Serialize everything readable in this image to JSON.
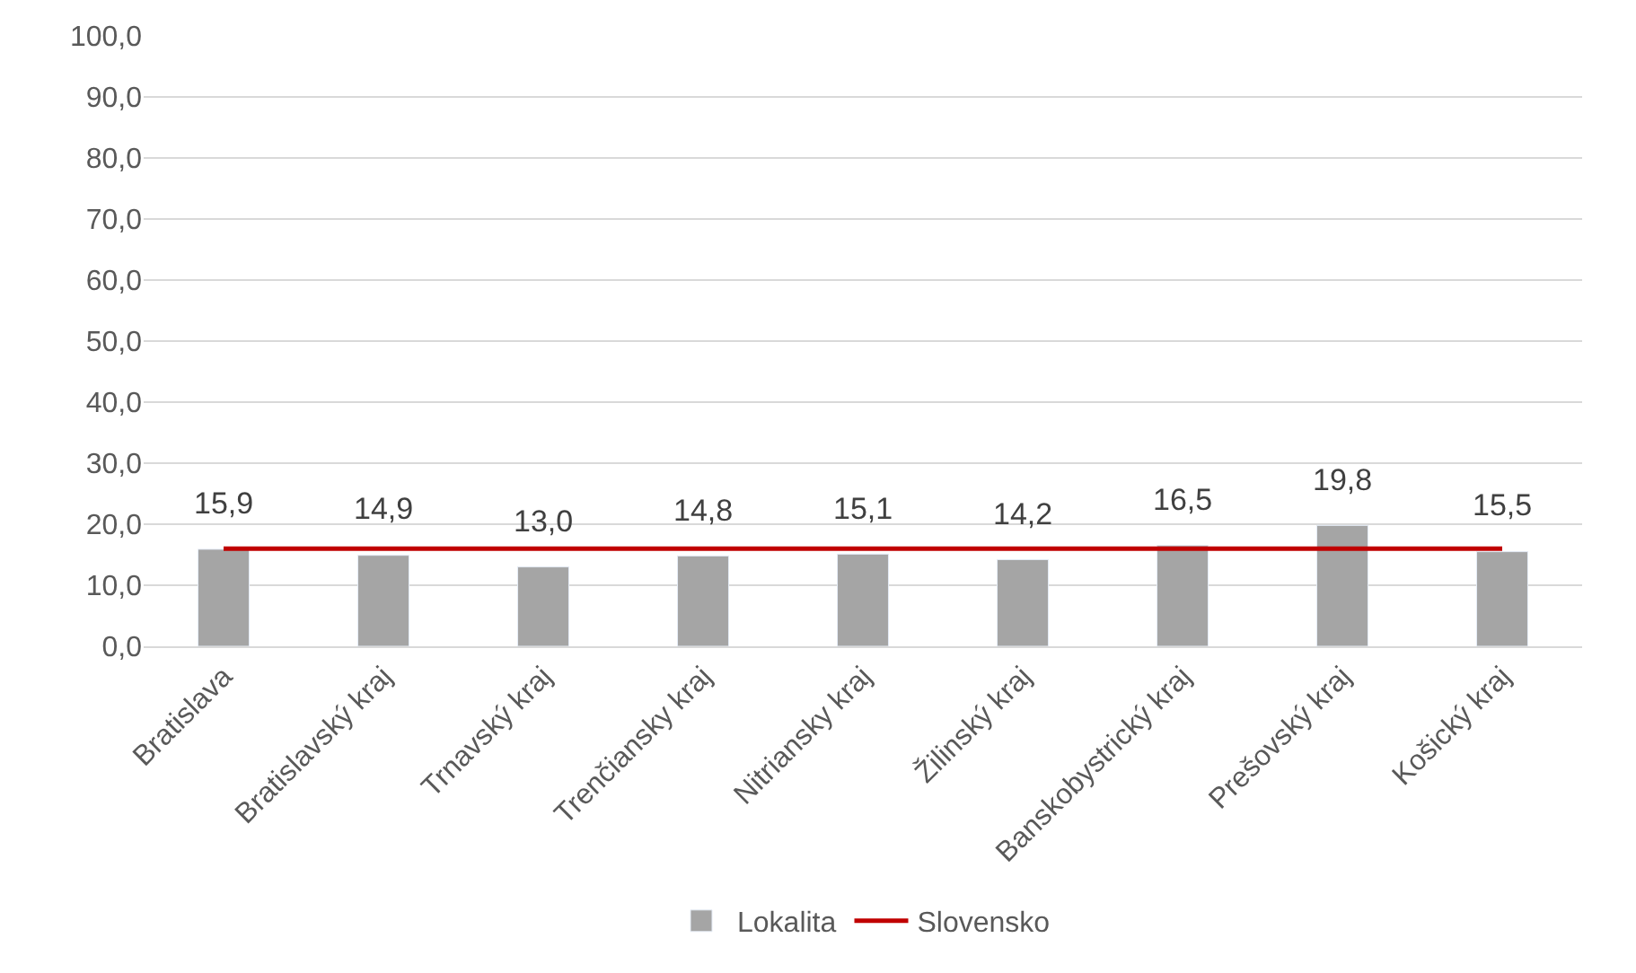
{
  "chart_data": {
    "type": "bar",
    "categories": [
      "Bratislava",
      "Bratislavský kraj",
      "Trnavský kraj",
      "Trenčiansky kraj",
      "Nitriansky kraj",
      "Žilinský kraj",
      "Banskobystrický kraj",
      "Prešovský kraj",
      "Košický kraj"
    ],
    "series": [
      {
        "name": "Lokalita",
        "color": "#a5a5a5",
        "values": [
          15.9,
          14.9,
          13.0,
          14.8,
          15.1,
          14.2,
          16.5,
          19.8,
          15.5
        ],
        "value_labels": [
          "15,9",
          "14,9",
          "13,0",
          "14,8",
          "15,1",
          "14,2",
          "16,5",
          "19,8",
          "15,5"
        ]
      },
      {
        "name": "Slovensko",
        "type": "line",
        "color": "#c00000",
        "values": [
          16.0,
          16.0,
          16.0,
          16.0,
          16.0,
          16.0,
          16.0,
          16.0,
          16.0
        ]
      }
    ],
    "ylim": [
      0,
      100
    ],
    "yticks": [
      {
        "value": 0,
        "label": "0,0"
      },
      {
        "value": 10,
        "label": "10,0"
      },
      {
        "value": 20,
        "label": "20,0"
      },
      {
        "value": 30,
        "label": "30,0"
      },
      {
        "value": 40,
        "label": "40,0"
      },
      {
        "value": 50,
        "label": "50,0"
      },
      {
        "value": 60,
        "label": "60,0"
      },
      {
        "value": 70,
        "label": "70,0"
      },
      {
        "value": 80,
        "label": "80,0"
      },
      {
        "value": 90,
        "label": "90,0"
      },
      {
        "value": 100,
        "label": "100,0"
      }
    ],
    "grid": "y",
    "legend": "bottom",
    "marker": "none",
    "line_style": "solid"
  }
}
